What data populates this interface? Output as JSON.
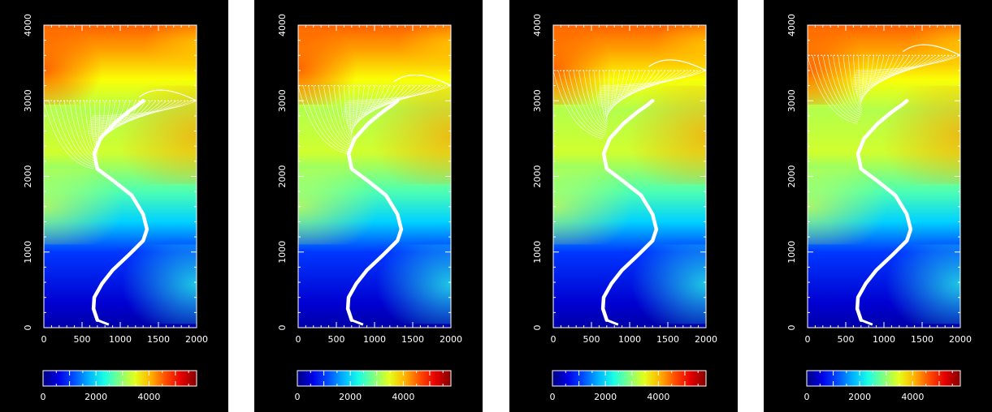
{
  "chart_data": [
    {
      "type": "heatmap",
      "xlim": [
        0,
        2000
      ],
      "ylim": [
        0,
        4000
      ],
      "x_ticks": [
        "0",
        "500",
        "1000",
        "1500",
        "2000"
      ],
      "y_ticks": [
        "0",
        "1000",
        "2000",
        "3000",
        "4000"
      ],
      "colorbar": {
        "range": [
          0,
          5800
        ],
        "ticks": [
          "0",
          "2000",
          "4000"
        ]
      },
      "source_depth": 3000,
      "fan_lines": 30
    },
    {
      "type": "heatmap",
      "xlim": [
        0,
        2000
      ],
      "ylim": [
        0,
        4000
      ],
      "x_ticks": [
        "0",
        "500",
        "1000",
        "1500",
        "2000"
      ],
      "y_ticks": [
        "0",
        "1000",
        "2000",
        "3000",
        "4000"
      ],
      "colorbar": {
        "range": [
          0,
          5800
        ],
        "ticks": [
          "0",
          "2000",
          "4000"
        ]
      },
      "source_depth": 3200,
      "fan_lines": 30
    },
    {
      "type": "heatmap",
      "xlim": [
        0,
        2000
      ],
      "ylim": [
        0,
        4000
      ],
      "x_ticks": [
        "0",
        "500",
        "1000",
        "1500",
        "2000"
      ],
      "y_ticks": [
        "0",
        "1000",
        "2000",
        "3000",
        "4000"
      ],
      "colorbar": {
        "range": [
          0,
          5800
        ],
        "ticks": [
          "0",
          "2000",
          "4000"
        ]
      },
      "source_depth": 3400,
      "fan_lines": 30
    },
    {
      "type": "heatmap",
      "xlim": [
        0,
        2000
      ],
      "ylim": [
        0,
        4000
      ],
      "x_ticks": [
        "0",
        "500",
        "1000",
        "1500",
        "2000"
      ],
      "y_ticks": [
        "0",
        "1000",
        "2000",
        "3000",
        "4000"
      ],
      "colorbar": {
        "range": [
          0,
          5800
        ],
        "ticks": [
          "0",
          "2000",
          "4000"
        ]
      },
      "source_depth": 3600,
      "fan_lines": 30
    }
  ],
  "curve": {
    "x": [
      700,
      650,
      660,
      760,
      900,
      1100,
      1300,
      1350,
      1300,
      1150,
      900,
      700,
      660,
      740,
      920,
      1100,
      1240,
      1300
    ],
    "y": [
      100,
      250,
      400,
      580,
      760,
      950,
      1150,
      1300,
      1500,
      1750,
      1950,
      2100,
      2300,
      2500,
      2700,
      2850,
      2950,
      3000
    ]
  },
  "colors": {
    "background": "#000000",
    "ray": "#ffffff"
  }
}
